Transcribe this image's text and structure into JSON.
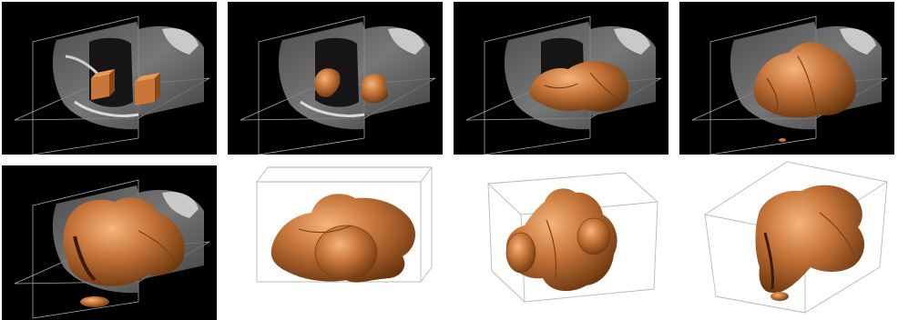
{
  "figure": {
    "panels": [
      {
        "id": "p1",
        "background": "black",
        "content": "ct-slices-with-two-cube-seeds"
      },
      {
        "id": "p2",
        "background": "black",
        "content": "ct-slices-with-small-growth"
      },
      {
        "id": "p3",
        "background": "black",
        "content": "ct-slices-with-partial-sinus-surface"
      },
      {
        "id": "p4",
        "background": "black",
        "content": "ct-slices-with-larger-sinus-surface"
      },
      {
        "id": "p5",
        "background": "black",
        "content": "ct-slices-with-full-sinus-surface"
      },
      {
        "id": "p6",
        "background": "white",
        "content": "sinus-surface-in-bounding-box"
      },
      {
        "id": "p7",
        "background": "white",
        "content": "sinus-surface-in-bounding-box-rotated"
      },
      {
        "id": "p8",
        "background": "white",
        "content": "sinus-surface-in-bounding-box-oblique"
      }
    ],
    "colors": {
      "surface": "#c8763a",
      "surface_dark": "#7a3f14",
      "surface_light": "#f0b27a",
      "slice": "#9a9a9a",
      "frame": "#b8b8b8"
    }
  }
}
